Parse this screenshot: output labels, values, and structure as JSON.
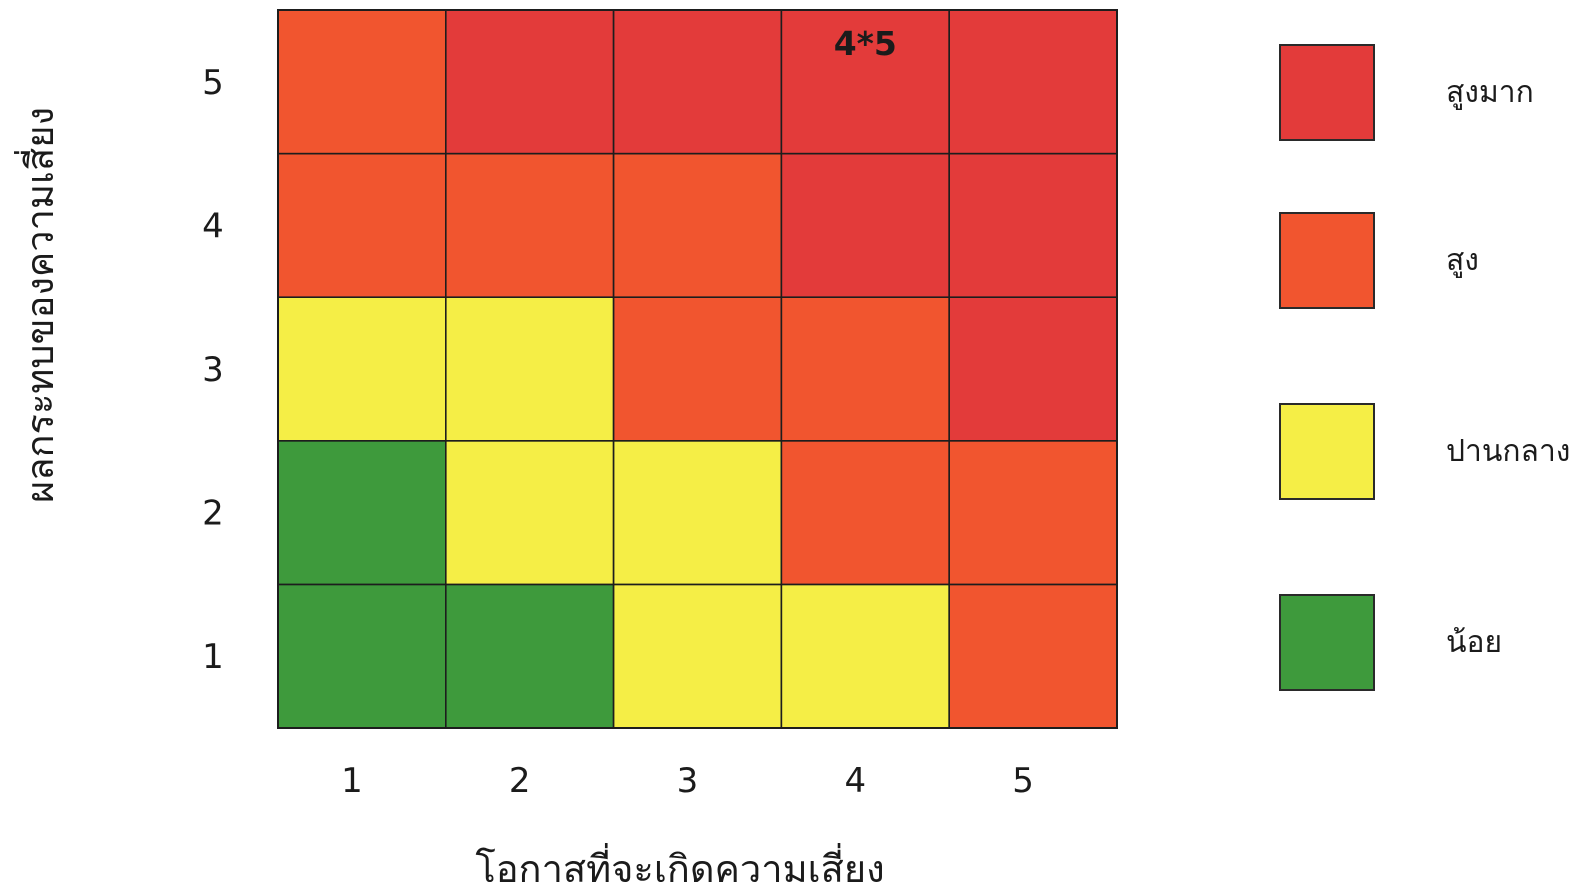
{
  "chart_data": {
    "type": "heatmap",
    "title": "",
    "xlabel": "โอกาสที่จะเกิดความเสี่ยง",
    "ylabel": "ผลกระทบของความเสี่ยง",
    "x_categories": [
      "1",
      "2",
      "3",
      "4",
      "5"
    ],
    "y_categories": [
      "1",
      "2",
      "3",
      "4",
      "5"
    ],
    "levels": [
      {
        "key": "very_high",
        "label": "สูงมาก",
        "color": "#e33b3a"
      },
      {
        "key": "high",
        "label": "สูง",
        "color": "#f1552f"
      },
      {
        "key": "medium",
        "label": "ปานกลาง",
        "color": "#f5ee46"
      },
      {
        "key": "low",
        "label": "น้อย",
        "color": "#3e9a3c"
      }
    ],
    "grid_levels": [
      [
        "low",
        "low",
        "medium",
        "medium",
        "high"
      ],
      [
        "low",
        "medium",
        "medium",
        "high",
        "high"
      ],
      [
        "medium",
        "medium",
        "high",
        "high",
        "very_high"
      ],
      [
        "high",
        "high",
        "high",
        "very_high",
        "very_high"
      ],
      [
        "high",
        "very_high",
        "very_high",
        "very_high",
        "very_high"
      ]
    ],
    "annotation": {
      "text": "4*5",
      "x": "4",
      "y": "5"
    },
    "legend_position": "right"
  }
}
